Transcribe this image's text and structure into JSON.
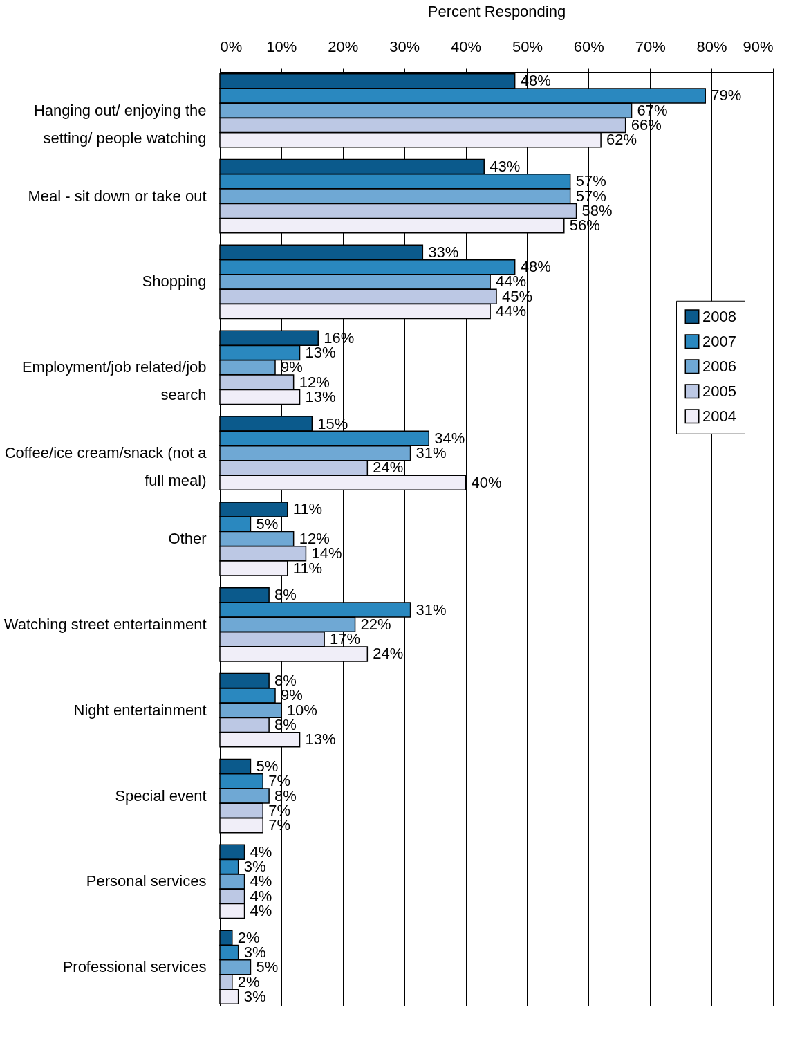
{
  "chart_data": {
    "type": "bar",
    "orientation": "horizontal",
    "xlabel": "Percent Responding",
    "categories": [
      "Hanging out/ enjoying the setting/ people watching",
      "Meal - sit down or take out",
      "Shopping",
      "Employment/job related/job search",
      "Coffee/ice cream/snack (not a full meal)",
      "Other",
      "Watching street entertainment",
      "Night entertainment",
      "Special event",
      "Personal services",
      "Professional services"
    ],
    "series": [
      {
        "name": "2008",
        "color": "#0b5a8c",
        "values": [
          48,
          43,
          33,
          16,
          15,
          11,
          8,
          8,
          5,
          4,
          2
        ],
        "value_labels": [
          "48%",
          "43%",
          "33%",
          "16%",
          "15%",
          "11%",
          "8%",
          "8%",
          "5%",
          "4%",
          "2%"
        ]
      },
      {
        "name": "2007",
        "color": "#2a88bf",
        "values": [
          79,
          57,
          48,
          13,
          34,
          5,
          31,
          9,
          7,
          3,
          3
        ],
        "value_labels": [
          "79%",
          "57%",
          "48%",
          "13%",
          "34%",
          "5%",
          "31%",
          "9%",
          "7%",
          "3%",
          "3%"
        ]
      },
      {
        "name": "2006",
        "color": "#6fa8d4",
        "values": [
          67,
          57,
          44,
          9,
          31,
          12,
          22,
          10,
          8,
          4,
          5
        ],
        "value_labels": [
          "67%",
          "57%",
          "44%",
          "9%",
          "31%",
          "12%",
          "22%",
          "10%",
          "8%",
          "4%",
          "5%"
        ]
      },
      {
        "name": "2005",
        "color": "#bcc8e4",
        "values": [
          66,
          58,
          45,
          12,
          24,
          14,
          17,
          8,
          7,
          4,
          2
        ],
        "value_labels": [
          "66%",
          "58%",
          "45%",
          "12%",
          "24%",
          "14%",
          "17%",
          "8%",
          "7%",
          "4%",
          "2%"
        ]
      },
      {
        "name": "2004",
        "color": "#f0eef8",
        "values": [
          62,
          56,
          44,
          13,
          40,
          11,
          24,
          13,
          7,
          4,
          3
        ],
        "value_labels": [
          "62%",
          "56%",
          "44%",
          "13%",
          "40%",
          "11%",
          "24%",
          "13%",
          "7%",
          "4%",
          "3%"
        ]
      }
    ],
    "xlim": [
      0,
      90
    ],
    "xticks": [
      {
        "value": 0,
        "label": "0%"
      },
      {
        "value": 10,
        "label": "10%"
      },
      {
        "value": 20,
        "label": "20%"
      },
      {
        "value": 30,
        "label": "30%"
      },
      {
        "value": 40,
        "label": "40%"
      },
      {
        "value": 50,
        "label": "50%"
      },
      {
        "value": 60,
        "label": "60%"
      },
      {
        "value": 70,
        "label": "70%"
      },
      {
        "value": 80,
        "label": "80%"
      },
      {
        "value": 90,
        "label": "90%"
      }
    ],
    "grid": "x",
    "legend": "right"
  }
}
